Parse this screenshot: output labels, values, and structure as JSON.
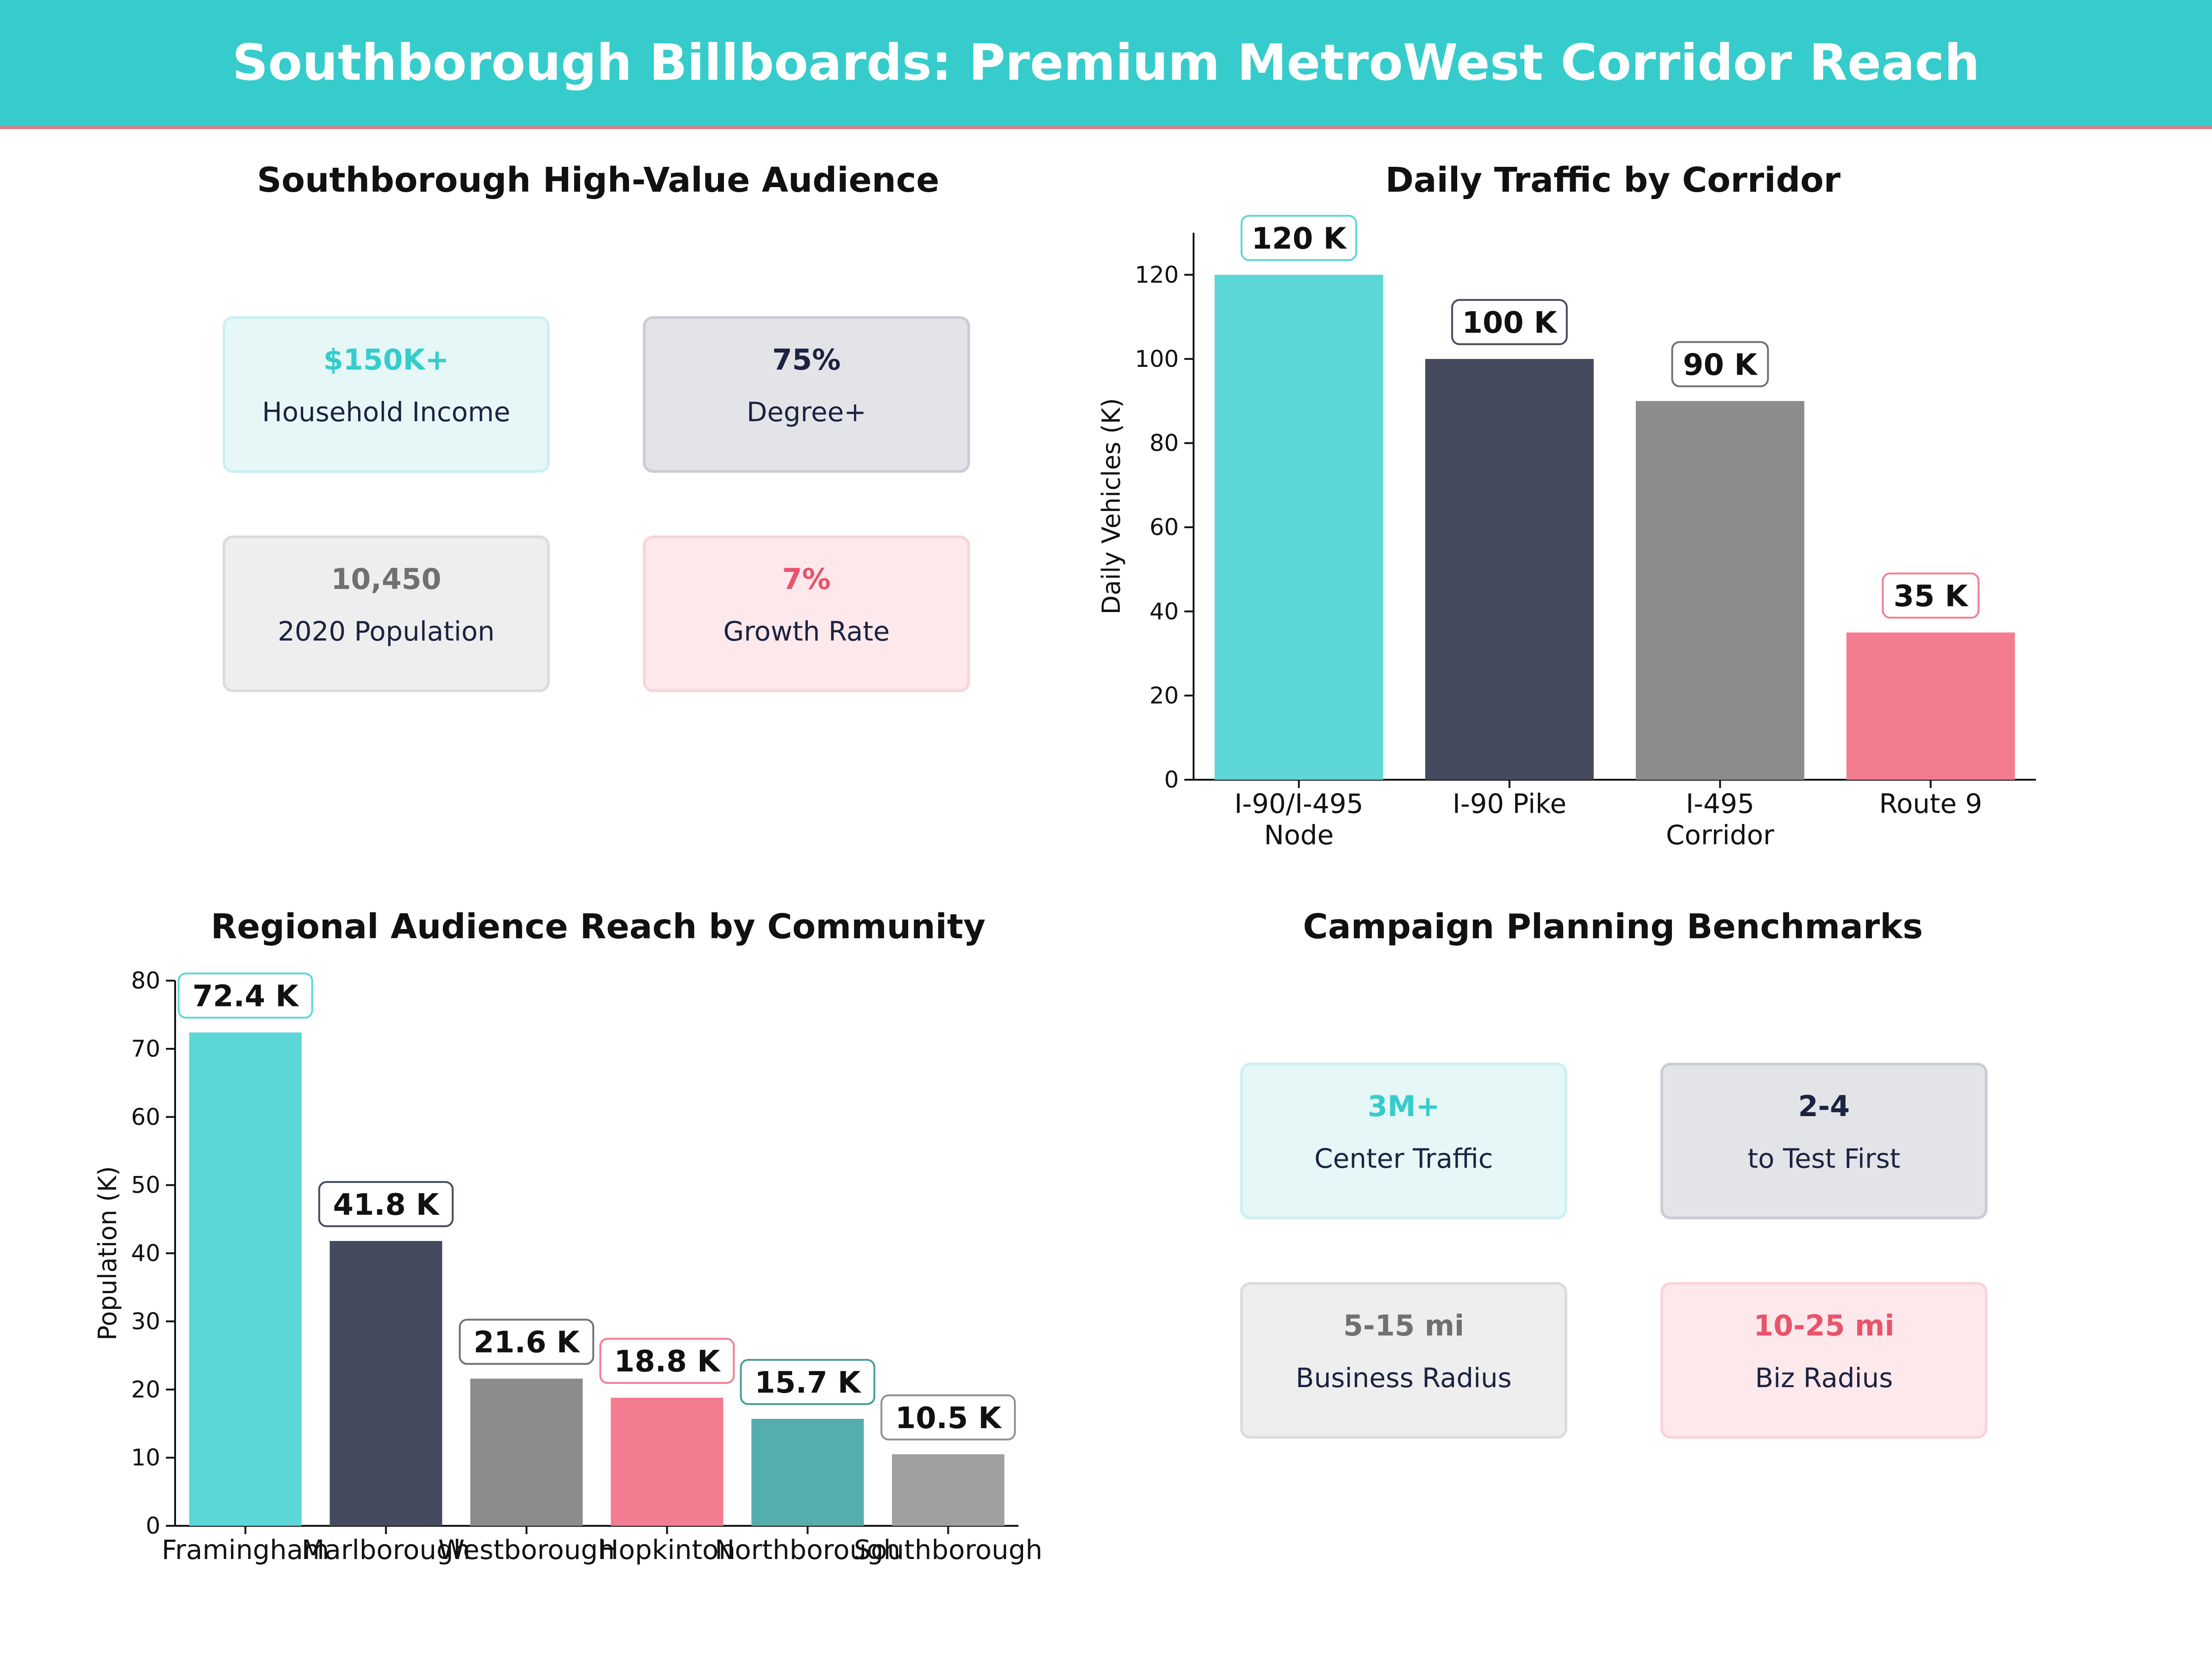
{
  "header": {
    "title": "Southborough Billboards: Premium MetroWest Corridor Reach"
  },
  "audience": {
    "title": "Southborough High-Value Audience",
    "cards": [
      {
        "value": "$150K+",
        "label": "Household Income",
        "accent": "#36cccc",
        "bg": "#e6f7f7",
        "border": "#cdf0f0"
      },
      {
        "value": "75%",
        "label": "Degree+",
        "accent": "#1c2340",
        "bg": "#e3e4e8",
        "border": "#cccdd3"
      },
      {
        "value": "10,450",
        "label": "2020 Population",
        "accent": "#707070",
        "bg": "#eeeeee",
        "border": "#dcdcdc"
      },
      {
        "value": "7%",
        "label": "Growth Rate",
        "accent": "#e8546a",
        "bg": "#fde8ec",
        "border": "#f9d4db"
      }
    ]
  },
  "benchmarks": {
    "title": "Campaign Planning Benchmarks",
    "cards": [
      {
        "value": "3M+",
        "label": "Center Traffic",
        "accent": "#36cccc",
        "bg": "#e6f7f7",
        "border": "#cdf0f0"
      },
      {
        "value": "2-4",
        "label": "to Test First",
        "accent": "#1c2340",
        "bg": "#e3e4e8",
        "border": "#cccdd3"
      },
      {
        "value": "5-15 mi",
        "label": "Business Radius",
        "accent": "#707070",
        "bg": "#eeeeee",
        "border": "#dcdcdc"
      },
      {
        "value": "10-25 mi",
        "label": "Biz Radius",
        "accent": "#e8546a",
        "bg": "#fde8ec",
        "border": "#f9d4db"
      }
    ]
  },
  "chart_data": [
    {
      "type": "bar",
      "title": "Daily Traffic by Corridor",
      "xlabel": "",
      "ylabel": "Daily Vehicles (K)",
      "categories": [
        "I-90/I-495\nNode",
        "I-90 Pike",
        "I-495\nCorridor",
        "Route 9"
      ],
      "values": [
        120,
        100,
        90,
        35
      ],
      "data_labels": [
        "120 K",
        "100 K",
        "90 K",
        "35 K"
      ],
      "colors": [
        "#5cd6d6",
        "#454a5e",
        "#8c8c8c",
        "#f47c90"
      ],
      "label_border_colors": [
        "#5cd6d6",
        "#454a5e",
        "#707070",
        "#f47c90"
      ],
      "ylim": [
        0,
        130
      ],
      "yticks": [
        0,
        20,
        40,
        60,
        80,
        100,
        120
      ],
      "grid": false
    },
    {
      "type": "bar",
      "title": "Regional Audience Reach by Community",
      "xlabel": "",
      "ylabel": "Population (K)",
      "categories": [
        "Framingham",
        "Marlborough",
        "Westborough",
        "Hopkinton",
        "Northborough",
        "Southborough"
      ],
      "values": [
        72.4,
        41.8,
        21.6,
        18.8,
        15.7,
        10.5
      ],
      "data_labels": [
        "72.4 K",
        "41.8 K",
        "21.6 K",
        "18.8 K",
        "15.7 K",
        "10.5 K"
      ],
      "colors": [
        "#5cd6d6",
        "#454a5e",
        "#8c8c8c",
        "#f47c90",
        "#55adae",
        "#a0a0a0"
      ],
      "label_border_colors": [
        "#5cd6d6",
        "#454a5e",
        "#707070",
        "#f47c90",
        "#459c9c",
        "#909090"
      ],
      "ylim": [
        0,
        80
      ],
      "yticks": [
        0,
        10,
        20,
        30,
        40,
        50,
        60,
        70,
        80
      ],
      "grid": false
    }
  ]
}
